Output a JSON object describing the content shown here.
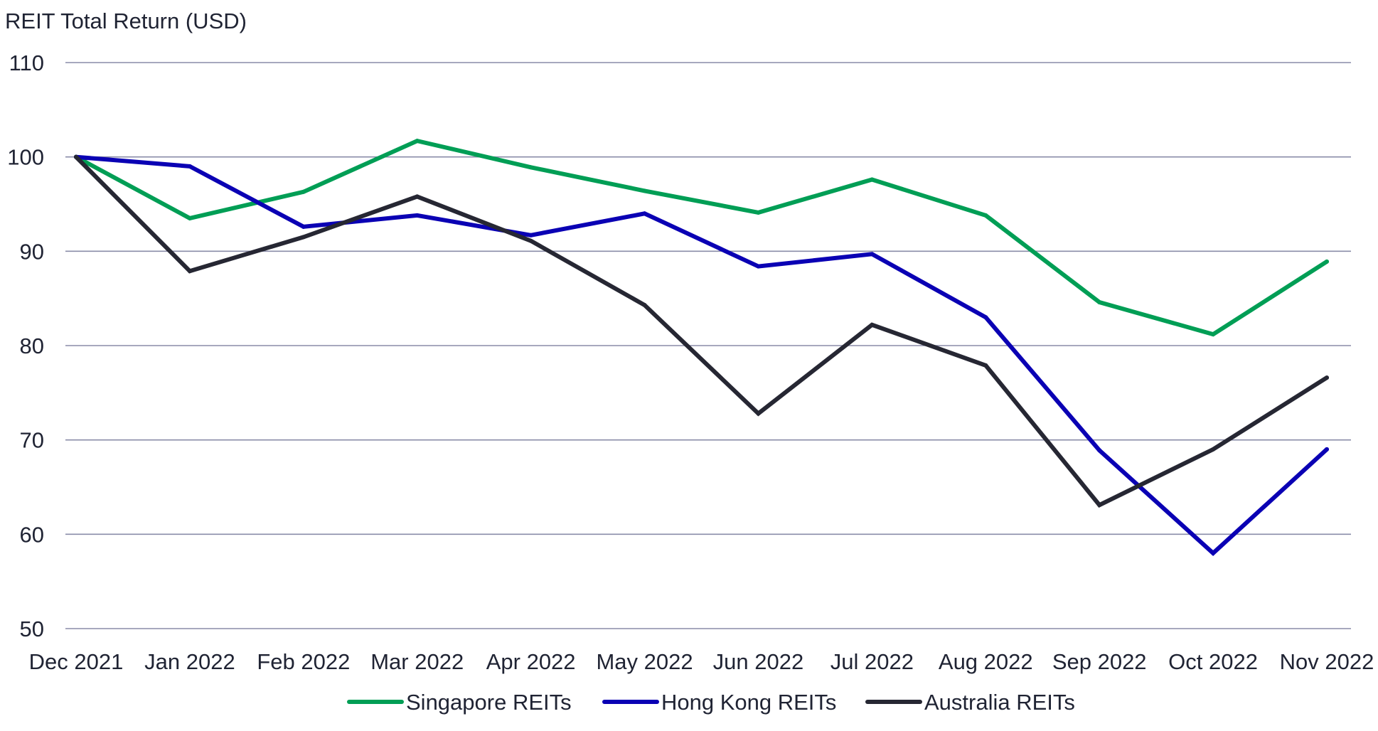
{
  "chart_data": {
    "type": "line",
    "title": "REIT Total Return (USD)",
    "xlabel": "",
    "ylabel": "",
    "ylim": [
      50,
      110
    ],
    "yticks": [
      50,
      60,
      70,
      80,
      90,
      100,
      110
    ],
    "categories": [
      "Dec 2021",
      "Jan 2022",
      "Feb 2022",
      "Mar 2022",
      "Apr 2022",
      "May 2022",
      "Jun 2022",
      "Jul 2022",
      "Aug 2022",
      "Sep 2022",
      "Oct 2022",
      "Nov 2022"
    ],
    "grid": true,
    "legend_position": "bottom",
    "series": [
      {
        "name": "Singapore REITs",
        "color": "#009e55",
        "values": [
          100,
          93.5,
          96.3,
          101.7,
          98.9,
          96.4,
          94.1,
          97.6,
          93.8,
          84.6,
          81.2,
          88.9
        ]
      },
      {
        "name": "Hong Kong REITs",
        "color": "#0a00b4",
        "values": [
          100,
          99.0,
          92.6,
          93.8,
          91.7,
          94.0,
          88.4,
          89.7,
          83.0,
          68.9,
          58.0,
          69.0
        ]
      },
      {
        "name": "Australia REITs",
        "color": "#262733",
        "values": [
          100,
          87.9,
          91.5,
          95.8,
          91.1,
          84.3,
          72.8,
          82.2,
          77.9,
          63.1,
          69.0,
          76.6
        ]
      }
    ]
  },
  "colors": {
    "grid": "#8a8ca8",
    "text": "#1f2333"
  }
}
